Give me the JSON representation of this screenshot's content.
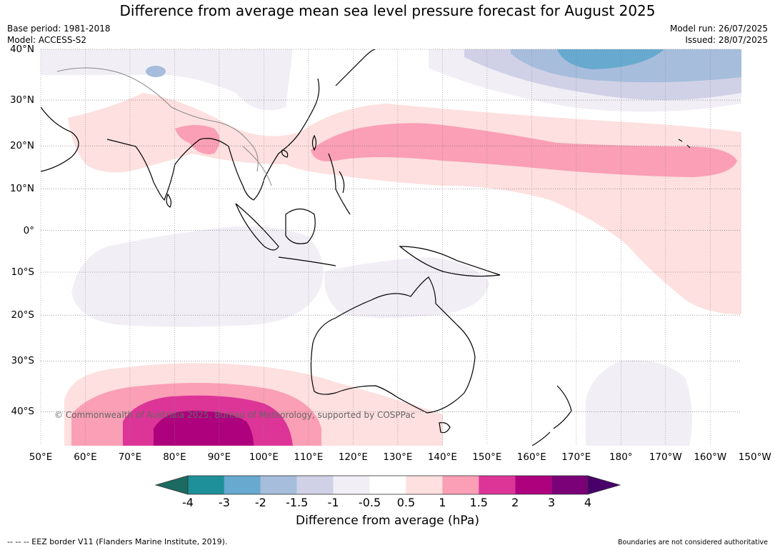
{
  "title": "Difference from average mean sea level pressure forecast for August 2025",
  "meta_left": {
    "base_period": "Base period: 1981-2018",
    "model": "Model: ACCESS-S2"
  },
  "meta_right": {
    "model_run": "Model run: 26/07/2025",
    "issued": "Issued: 28/07/2025"
  },
  "map": {
    "lon_range": [
      50,
      207
    ],
    "lat_range": [
      -46,
      40
    ],
    "lat_labels": [
      {
        "lat": 40,
        "label": "40°N"
      },
      {
        "lat": 30,
        "label": "30°N"
      },
      {
        "lat": 20,
        "label": "20°N"
      },
      {
        "lat": 10,
        "label": "10°N"
      },
      {
        "lat": 0,
        "label": "0°"
      },
      {
        "lat": -10,
        "label": "10°S"
      },
      {
        "lat": -20,
        "label": "20°S"
      },
      {
        "lat": -30,
        "label": "30°S"
      },
      {
        "lat": -40,
        "label": "40°S"
      }
    ],
    "lon_labels": [
      {
        "lon": 50,
        "label": "50°E"
      },
      {
        "lon": 60,
        "label": "60°E"
      },
      {
        "lon": 70,
        "label": "70°E"
      },
      {
        "lon": 80,
        "label": "80°E"
      },
      {
        "lon": 90,
        "label": "90°E"
      },
      {
        "lon": 100,
        "label": "100°E"
      },
      {
        "lon": 110,
        "label": "110°E"
      },
      {
        "lon": 120,
        "label": "120°E"
      },
      {
        "lon": 130,
        "label": "130°E"
      },
      {
        "lon": 140,
        "label": "140°E"
      },
      {
        "lon": 150,
        "label": "150°E"
      },
      {
        "lon": 160,
        "label": "160°E"
      },
      {
        "lon": 170,
        "label": "170°E"
      },
      {
        "lon": 180,
        "label": "180°"
      },
      {
        "lon": 190,
        "label": "170°W"
      },
      {
        "lon": 200,
        "label": "160°W"
      },
      {
        "lon": 210,
        "label": "150°W"
      }
    ],
    "grid": true,
    "copyright": "© Commonwealth of Australia 2025, Bureau of Meteorology, supported by COSPPac"
  },
  "colorbar": {
    "levels": [
      "-4",
      "-3",
      "-2",
      "-1.5",
      "-1",
      "-0.5",
      "0.5",
      "1",
      "1.5",
      "2",
      "3",
      "4"
    ],
    "colors": [
      "#1b6b63",
      "#1d9099",
      "#67a9cf",
      "#a6bddb",
      "#d0d1e6",
      "#f1eef6",
      "#ffffff",
      "#fde0df",
      "#fa9fb5",
      "#dd3497",
      "#ae017e",
      "#7a0177",
      "#49006a"
    ],
    "title": "Difference from average (hPa)"
  },
  "footer": {
    "left": "--  --  -- EEZ border V11 (Flanders Marine Institute, 2019).",
    "right": "Boundaries are not considered authoritative"
  }
}
